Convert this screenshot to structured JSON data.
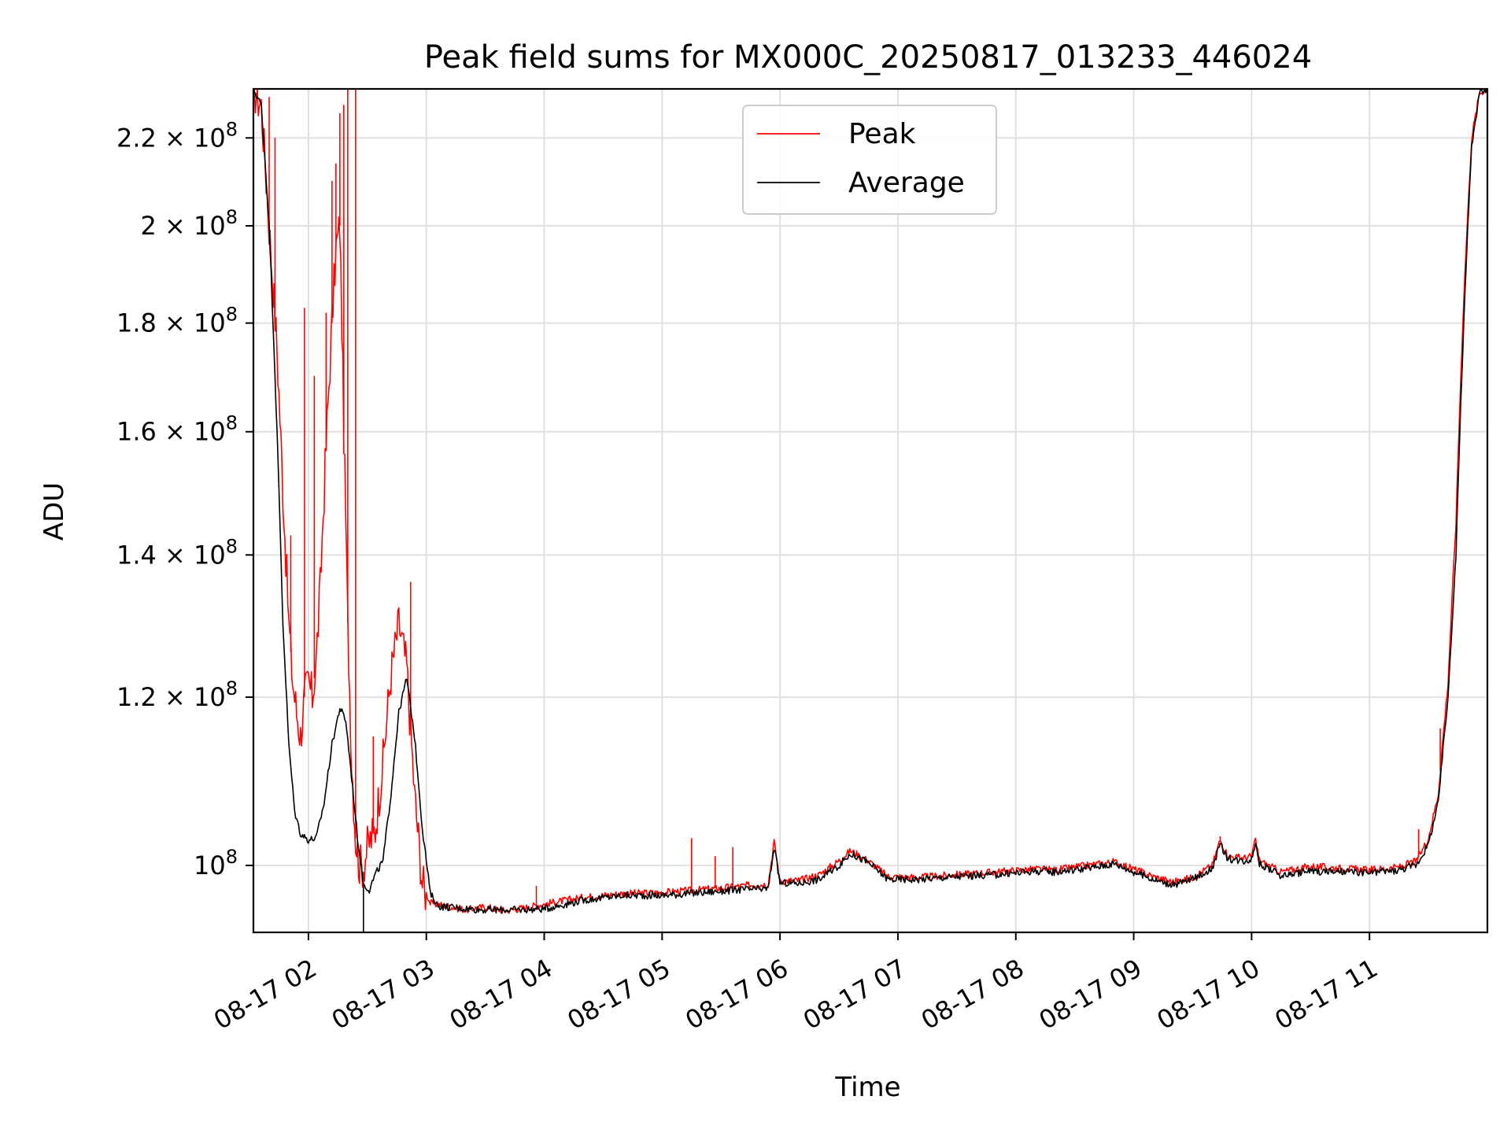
{
  "chart_data": {
    "type": "line",
    "title": "Peak field sums for MX000C_20250817_013233_446024",
    "xlabel": "Time",
    "ylabel": "ADU",
    "yscale": "log",
    "ylim": [
      93000000,
      232000000
    ],
    "xlim": [
      "08-17 01:32",
      "08-17 12:00"
    ],
    "x_ticks": [
      "08-17 02",
      "08-17 03",
      "08-17 04",
      "08-17 05",
      "08-17 06",
      "08-17 07",
      "08-17 08",
      "08-17 09",
      "08-17 10",
      "08-17 11"
    ],
    "y_ticks": [
      {
        "value": 100000000,
        "mantissa": "",
        "exponent": "8"
      },
      {
        "value": 120000000,
        "mantissa": "1.2",
        "exponent": "8"
      },
      {
        "value": 140000000,
        "mantissa": "1.4",
        "exponent": "8"
      },
      {
        "value": 160000000,
        "mantissa": "1.6",
        "exponent": "8"
      },
      {
        "value": 180000000,
        "mantissa": "1.8",
        "exponent": "8"
      },
      {
        "value": 200000000,
        "mantissa": "2",
        "exponent": "8"
      },
      {
        "value": 220000000,
        "mantissa": "2.2",
        "exponent": "8"
      }
    ],
    "grid": true,
    "legend_position": "top-center",
    "series": [
      {
        "name": "Peak",
        "color": "#ff0000",
        "points": [
          [
            "08-17 01:32",
            232000000
          ],
          [
            "08-17 01:36",
            228000000
          ],
          [
            "08-17 01:40",
            200000000
          ],
          [
            "08-17 01:44",
            175000000
          ],
          [
            "08-17 01:47",
            150000000
          ],
          [
            "08-17 01:50",
            130000000
          ],
          [
            "08-17 01:52",
            122000000
          ],
          [
            "08-17 01:54",
            118000000
          ],
          [
            "08-17 01:56",
            115000000
          ],
          [
            "08-17 01:58",
            120000000
          ],
          [
            "08-17 02:00",
            122000000
          ],
          [
            "08-17 02:02",
            120000000
          ],
          [
            "08-17 02:04",
            125000000
          ],
          [
            "08-17 02:06",
            135000000
          ],
          [
            "08-17 02:08",
            150000000
          ],
          [
            "08-17 02:10",
            165000000
          ],
          [
            "08-17 02:12",
            180000000
          ],
          [
            "08-17 02:14",
            195000000
          ],
          [
            "08-17 02:16",
            200000000
          ],
          [
            "08-17 02:18",
            160000000
          ],
          [
            "08-17 02:20",
            130000000
          ],
          [
            "08-17 02:22",
            112000000
          ],
          [
            "08-17 02:24",
            103000000
          ],
          [
            "08-17 02:26",
            100000000
          ],
          [
            "08-17 02:28",
            100000000
          ],
          [
            "08-17 02:30",
            102000000
          ],
          [
            "08-17 02:34",
            104000000
          ],
          [
            "08-17 02:38",
            112000000
          ],
          [
            "08-17 02:42",
            123000000
          ],
          [
            "08-17 02:46",
            130000000
          ],
          [
            "08-17 02:50",
            124000000
          ],
          [
            "08-17 02:54",
            108000000
          ],
          [
            "08-17 02:58",
            98000000
          ],
          [
            "08-17 03:02",
            96000000
          ],
          [
            "08-17 03:10",
            95700000
          ],
          [
            "08-17 03:20",
            95300000
          ],
          [
            "08-17 03:30",
            95600000
          ],
          [
            "08-17 03:40",
            95200000
          ],
          [
            "08-17 03:50",
            95500000
          ],
          [
            "08-17 04:00",
            95900000
          ],
          [
            "08-17 04:20",
            96600000
          ],
          [
            "08-17 04:40",
            97000000
          ],
          [
            "08-17 05:00",
            97100000
          ],
          [
            "08-17 05:20",
            97400000
          ],
          [
            "08-17 05:36",
            97700000
          ],
          [
            "08-17 05:46",
            97900000
          ],
          [
            "08-17 05:54",
            98000000
          ],
          [
            "08-17 05:57",
            102600000
          ],
          [
            "08-17 06:00",
            98300000
          ],
          [
            "08-17 06:10",
            98400000
          ],
          [
            "08-17 06:20",
            99000000
          ],
          [
            "08-17 06:30",
            100500000
          ],
          [
            "08-17 06:36",
            101600000
          ],
          [
            "08-17 06:45",
            100500000
          ],
          [
            "08-17 06:55",
            98800000
          ],
          [
            "08-17 07:10",
            98700000
          ],
          [
            "08-17 07:30",
            99000000
          ],
          [
            "08-17 07:50",
            99300000
          ],
          [
            "08-17 08:10",
            99600000
          ],
          [
            "08-17 08:20",
            99500000
          ],
          [
            "08-17 08:40",
            100100000
          ],
          [
            "08-17 08:50",
            100400000
          ],
          [
            "08-17 09:00",
            99600000
          ],
          [
            "08-17 09:10",
            98800000
          ],
          [
            "08-17 09:20",
            98200000
          ],
          [
            "08-17 09:30",
            98700000
          ],
          [
            "08-17 09:40",
            100000000
          ],
          [
            "08-17 09:44",
            102800000
          ],
          [
            "08-17 09:48",
            101000000
          ],
          [
            "08-17 09:56",
            100800000
          ],
          [
            "08-17 10:00",
            101000000
          ],
          [
            "08-17 10:02",
            102800000
          ],
          [
            "08-17 10:04",
            100500000
          ],
          [
            "08-17 10:15",
            99300000
          ],
          [
            "08-17 10:30",
            99900000
          ],
          [
            "08-17 10:45",
            99700000
          ],
          [
            "08-17 11:00",
            99500000
          ],
          [
            "08-17 11:15",
            99800000
          ],
          [
            "08-17 11:24",
            100500000
          ],
          [
            "08-17 11:30",
            103000000
          ],
          [
            "08-17 11:35",
            108000000
          ],
          [
            "08-17 11:40",
            122000000
          ],
          [
            "08-17 11:44",
            145000000
          ],
          [
            "08-17 11:48",
            185000000
          ],
          [
            "08-17 11:52",
            220000000
          ],
          [
            "08-17 11:56",
            231000000
          ],
          [
            "08-17 12:00",
            232000000
          ]
        ],
        "spikes": [
          [
            "08-17 01:40",
            230000000
          ],
          [
            "08-17 01:43",
            220000000
          ],
          [
            "08-17 01:47",
            150000000
          ],
          [
            "08-17 01:51",
            143000000
          ],
          [
            "08-17 01:58",
            183000000
          ],
          [
            "08-17 02:03",
            170000000
          ],
          [
            "08-17 02:09",
            182000000
          ],
          [
            "08-17 02:12",
            210000000
          ],
          [
            "08-17 02:14",
            214000000
          ],
          [
            "08-17 02:16",
            226000000
          ],
          [
            "08-17 02:18",
            228000000
          ],
          [
            "08-17 02:20",
            232000000
          ],
          [
            "08-17 02:24",
            232000000
          ],
          [
            "08-17 02:33",
            115000000
          ],
          [
            "08-17 02:52",
            136000000
          ],
          [
            "08-17 03:56",
            97800000
          ],
          [
            "08-17 05:15",
            103000000
          ],
          [
            "08-17 05:27",
            101000000
          ],
          [
            "08-17 05:36",
            102000000
          ],
          [
            "08-17 09:44",
            103200000
          ],
          [
            "08-17 11:25",
            104000000
          ],
          [
            "08-17 11:36",
            116000000
          ]
        ]
      },
      {
        "name": "Average",
        "color": "#000000",
        "points": [
          [
            "08-17 01:32",
            232000000
          ],
          [
            "08-17 01:36",
            228000000
          ],
          [
            "08-17 01:40",
            200000000
          ],
          [
            "08-17 01:44",
            160000000
          ],
          [
            "08-17 01:47",
            130000000
          ],
          [
            "08-17 01:50",
            114000000
          ],
          [
            "08-17 01:53",
            106000000
          ],
          [
            "08-17 01:56",
            103500000
          ],
          [
            "08-17 02:00",
            102800000
          ],
          [
            "08-17 02:04",
            103000000
          ],
          [
            "08-17 02:08",
            107000000
          ],
          [
            "08-17 02:12",
            114000000
          ],
          [
            "08-17 02:16",
            118600000
          ],
          [
            "08-17 02:19",
            117000000
          ],
          [
            "08-17 02:22",
            110000000
          ],
          [
            "08-17 02:25",
            103000000
          ],
          [
            "08-17 02:28",
            98000000
          ],
          [
            "08-17 02:31",
            97400000
          ],
          [
            "08-17 02:34",
            99000000
          ],
          [
            "08-17 02:38",
            100500000
          ],
          [
            "08-17 02:42",
            108000000
          ],
          [
            "08-17 02:46",
            118000000
          ],
          [
            "08-17 02:50",
            122500000
          ],
          [
            "08-17 02:54",
            115000000
          ],
          [
            "08-17 02:58",
            104000000
          ],
          [
            "08-17 03:02",
            97000000
          ],
          [
            "08-17 03:06",
            95700000
          ],
          [
            "08-17 03:15",
            95500000
          ],
          [
            "08-17 03:30",
            95300000
          ],
          [
            "08-17 03:45",
            95300000
          ],
          [
            "08-17 04:00",
            95400000
          ],
          [
            "08-17 04:20",
            96300000
          ],
          [
            "08-17 04:40",
            96800000
          ],
          [
            "08-17 05:00",
            96800000
          ],
          [
            "08-17 05:20",
            97100000
          ],
          [
            "08-17 05:40",
            97400000
          ],
          [
            "08-17 05:54",
            97500000
          ],
          [
            "08-17 05:57",
            102000000
          ],
          [
            "08-17 06:00",
            98100000
          ],
          [
            "08-17 06:10",
            98100000
          ],
          [
            "08-17 06:20",
            98500000
          ],
          [
            "08-17 06:30",
            100000000
          ],
          [
            "08-17 06:36",
            101300000
          ],
          [
            "08-17 06:45",
            100300000
          ],
          [
            "08-17 06:55",
            98500000
          ],
          [
            "08-17 07:10",
            98500000
          ],
          [
            "08-17 07:30",
            98800000
          ],
          [
            "08-17 07:50",
            99000000
          ],
          [
            "08-17 08:10",
            99400000
          ],
          [
            "08-17 08:20",
            99300000
          ],
          [
            "08-17 08:40",
            99800000
          ],
          [
            "08-17 08:50",
            100200000
          ],
          [
            "08-17 09:00",
            99300000
          ],
          [
            "08-17 09:10",
            98500000
          ],
          [
            "08-17 09:20",
            97900000
          ],
          [
            "08-17 09:30",
            98500000
          ],
          [
            "08-17 09:40",
            99700000
          ],
          [
            "08-17 09:44",
            102300000
          ],
          [
            "08-17 09:48",
            100700000
          ],
          [
            "08-17 09:56",
            100500000
          ],
          [
            "08-17 10:00",
            100700000
          ],
          [
            "08-17 10:02",
            102500000
          ],
          [
            "08-17 10:04",
            100200000
          ],
          [
            "08-17 10:15",
            98900000
          ],
          [
            "08-17 10:30",
            99400000
          ],
          [
            "08-17 10:45",
            99300000
          ],
          [
            "08-17 11:00",
            99200000
          ],
          [
            "08-17 11:15",
            99500000
          ],
          [
            "08-17 11:24",
            100100000
          ],
          [
            "08-17 11:30",
            102300000
          ],
          [
            "08-17 11:35",
            107000000
          ],
          [
            "08-17 11:40",
            120000000
          ],
          [
            "08-17 11:44",
            140000000
          ],
          [
            "08-17 11:48",
            180000000
          ],
          [
            "08-17 11:52",
            218000000
          ],
          [
            "08-17 11:56",
            231000000
          ],
          [
            "08-17 12:00",
            232000000
          ]
        ],
        "spikes": [
          [
            "08-17 02:28",
            93000000
          ]
        ]
      }
    ]
  }
}
